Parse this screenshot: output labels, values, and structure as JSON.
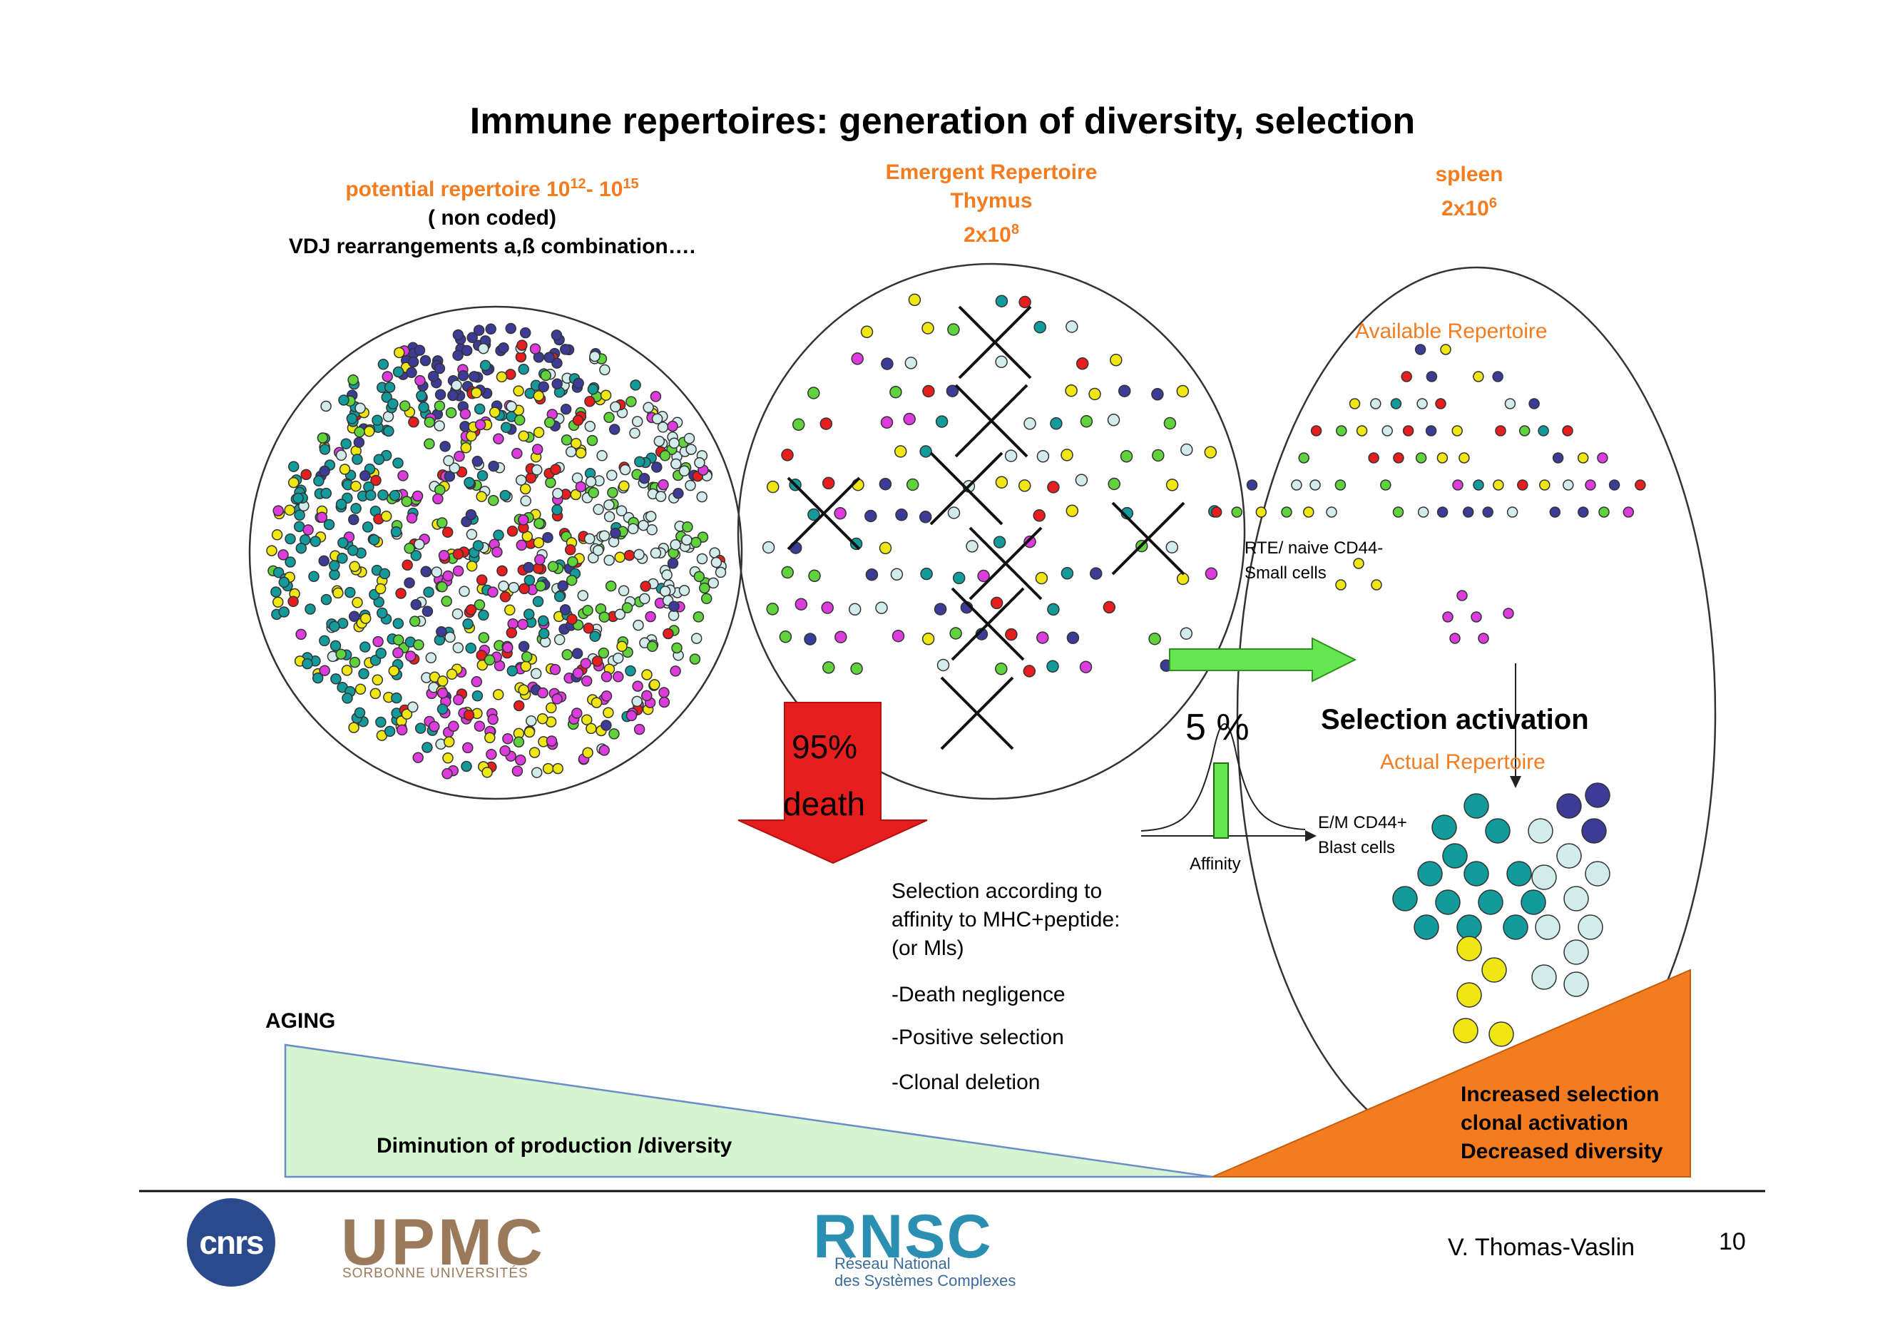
{
  "title": "Immune repertoires: generation of diversity, selection",
  "potential": {
    "label": "potential repertoire 10",
    "exp1": "12",
    "dash": "- 10",
    "exp2": "15",
    "line2": "( non coded)",
    "line3": "VDJ rearrangements a,ß combination…."
  },
  "emergent": {
    "line1": "Emergent Repertoire",
    "line2": "Thymus",
    "line3": "2x10",
    "exp": "8"
  },
  "spleen": {
    "line1": "spleen",
    "line2": "2x10",
    "exp": "6"
  },
  "available_repertoire": "Available Repertoire",
  "rte_line1": "RTE/ naive CD44-",
  "rte_line2": "Small cells",
  "death_pct": "95%",
  "death_word": "death",
  "five_pct": "5 %",
  "affinity": "Affinity",
  "em_line1": "E/M CD44+",
  "em_line2": "Blast cells",
  "selection_activation": "Selection activation",
  "actual_repertoire": "Actual Repertoire",
  "selection_text": {
    "line1": "Selection according to",
    "line2": "affinity to MHC+peptide:",
    "line3": "(or Mls)",
    "item1": "-Death negligence",
    "item2": "-Positive selection",
    "item3": "-Clonal deletion"
  },
  "aging": "AGING",
  "diminution": "Diminution of production /diversity",
  "increased": {
    "line1": "Increased selection",
    "line2": "clonal activation",
    "line3": "Decreased diversity"
  },
  "footer": {
    "author": "V. Thomas-Vaslin",
    "page": "10",
    "cnrs": "cnrs",
    "upmc": "UPMC",
    "upmc_sub": "SORBONNE UNIVERSITÉS",
    "rnsc": "RNSC",
    "rnsc_sub1": "Réseau National",
    "rnsc_sub2": "des Systèmes Complexes"
  },
  "colors": {
    "teal": "#139b9b",
    "navy": "#3c3c96",
    "green": "#5fd23c",
    "yellow": "#f0e614",
    "red": "#e61e1e",
    "magenta": "#dc3cdc",
    "pale": "#d2ebeb",
    "orange": "#f47c20",
    "arrow_red": "#e61e1e",
    "arrow_green": "#64e650",
    "aging_fill": "#d4f5d0"
  }
}
